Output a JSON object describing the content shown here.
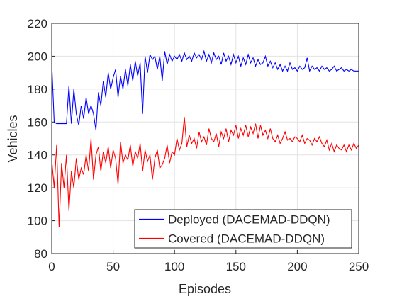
{
  "chart_data": {
    "type": "line",
    "xlabel": "Episodes",
    "ylabel": "Vehicles",
    "x": [
      0,
      2,
      4,
      6,
      8,
      10,
      12,
      14,
      16,
      18,
      20,
      22,
      24,
      26,
      28,
      30,
      32,
      34,
      36,
      38,
      40,
      42,
      44,
      46,
      48,
      50,
      52,
      54,
      56,
      58,
      60,
      62,
      64,
      66,
      68,
      70,
      72,
      74,
      76,
      78,
      80,
      82,
      84,
      86,
      88,
      90,
      92,
      94,
      96,
      98,
      100,
      102,
      104,
      106,
      108,
      110,
      112,
      114,
      116,
      118,
      120,
      122,
      124,
      126,
      128,
      130,
      132,
      134,
      136,
      138,
      140,
      142,
      144,
      146,
      148,
      150,
      152,
      154,
      156,
      158,
      160,
      162,
      164,
      166,
      168,
      170,
      172,
      174,
      176,
      178,
      180,
      182,
      184,
      186,
      188,
      190,
      192,
      194,
      196,
      198,
      200,
      202,
      204,
      206,
      208,
      210,
      212,
      214,
      216,
      218,
      220,
      222,
      224,
      226,
      228,
      230,
      232,
      234,
      236,
      238,
      240,
      242,
      244,
      246,
      248,
      250
    ],
    "series": [
      {
        "name": "Deployed (DACEMAD-DDQN)",
        "color": "#0000ff",
        "values": [
          196,
          160,
          159,
          159,
          159,
          159,
          159,
          182,
          159,
          180,
          165,
          158,
          170,
          162,
          175,
          165,
          170,
          165,
          155,
          178,
          170,
          185,
          175,
          190,
          180,
          187,
          192,
          175,
          188,
          180,
          192,
          182,
          195,
          185,
          197,
          188,
          196,
          165,
          200,
          190,
          201,
          198,
          200,
          192,
          200,
          185,
          203,
          195,
          201,
          197,
          200,
          198,
          201,
          197,
          202,
          198,
          200,
          197,
          202,
          199,
          201,
          198,
          203,
          197,
          201,
          196,
          202,
          198,
          200,
          195,
          202,
          197,
          200,
          195,
          201,
          196,
          200,
          194,
          199,
          195,
          201,
          196,
          199,
          194,
          198,
          195,
          196,
          200,
          194,
          197,
          193,
          196,
          192,
          195,
          191,
          194,
          191,
          196,
          192,
          193,
          191,
          194,
          192,
          193,
          199,
          191,
          194,
          192,
          193,
          191,
          194,
          192,
          193,
          191,
          192,
          194,
          191,
          192,
          193,
          191,
          192,
          191,
          192,
          191,
          191,
          191
        ]
      },
      {
        "name": "Covered (DACEMAD-DDQN)",
        "color": "#ff0000",
        "values": [
          137,
          120,
          146,
          96,
          135,
          120,
          140,
          106,
          130,
          120,
          138,
          125,
          132,
          128,
          140,
          130,
          150,
          125,
          140,
          145,
          130,
          142,
          135,
          145,
          132,
          143,
          138,
          122,
          148,
          135,
          140,
          137,
          146,
          133,
          142,
          138,
          147,
          130,
          143,
          136,
          140,
          125,
          138,
          143,
          132,
          134,
          138,
          146,
          135,
          142,
          140,
          150,
          143,
          147,
          163,
          145,
          152,
          147,
          150,
          144,
          154,
          148,
          151,
          146,
          156,
          150,
          148,
          153,
          145,
          154,
          150,
          156,
          148,
          155,
          152,
          158,
          150,
          156,
          152,
          158,
          151,
          157,
          153,
          159,
          150,
          158,
          152,
          155,
          150,
          156,
          150,
          148,
          152,
          147,
          150,
          154,
          149,
          150,
          148,
          151,
          150,
          148,
          152,
          147,
          150,
          149,
          146,
          150,
          148,
          151,
          147,
          145,
          149,
          143,
          147,
          142,
          146,
          144,
          143,
          146,
          142,
          146,
          143,
          147,
          144,
          146
        ]
      }
    ],
    "xlim": [
      0,
      250
    ],
    "xticks": [
      0,
      50,
      100,
      150,
      200,
      250
    ],
    "ylim": [
      80,
      220
    ],
    "yticks": [
      80,
      100,
      120,
      140,
      160,
      180,
      200,
      220
    ],
    "grid": true,
    "legend": "lower right"
  }
}
